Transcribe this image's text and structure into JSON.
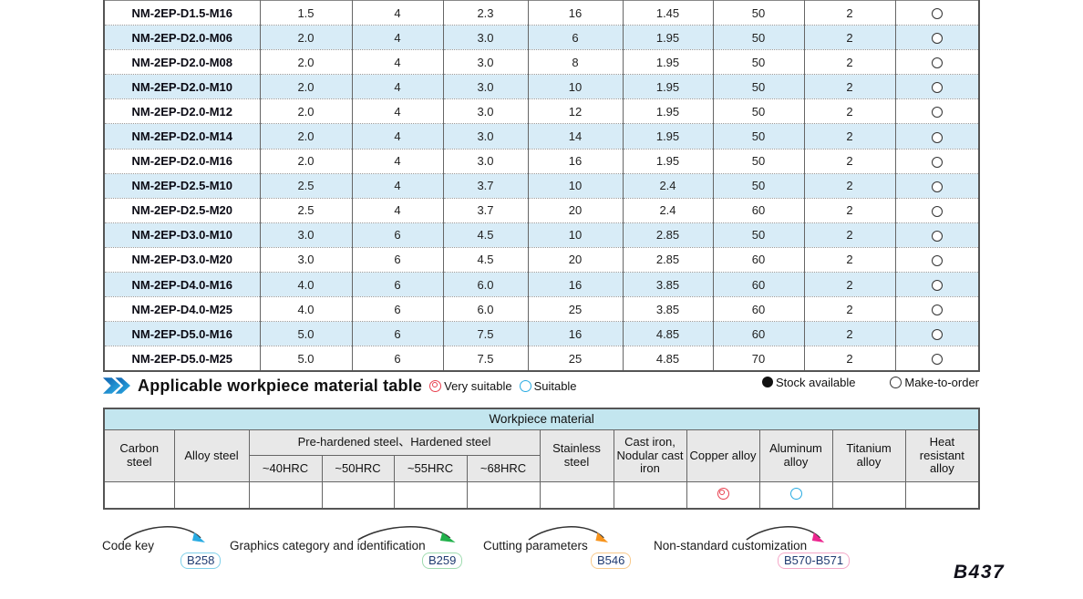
{
  "spec_table": {
    "rows": [
      {
        "model": "NM-2EP-D1.5-M16",
        "values": [
          "1.5",
          "4",
          "2.3",
          "16",
          "1.45",
          "50",
          "2"
        ],
        "stock": "make-to-order"
      },
      {
        "model": "NM-2EP-D2.0-M06",
        "values": [
          "2.0",
          "4",
          "3.0",
          "6",
          "1.95",
          "50",
          "2"
        ],
        "stock": "make-to-order"
      },
      {
        "model": "NM-2EP-D2.0-M08",
        "values": [
          "2.0",
          "4",
          "3.0",
          "8",
          "1.95",
          "50",
          "2"
        ],
        "stock": "make-to-order"
      },
      {
        "model": "NM-2EP-D2.0-M10",
        "values": [
          "2.0",
          "4",
          "3.0",
          "10",
          "1.95",
          "50",
          "2"
        ],
        "stock": "make-to-order"
      },
      {
        "model": "NM-2EP-D2.0-M12",
        "values": [
          "2.0",
          "4",
          "3.0",
          "12",
          "1.95",
          "50",
          "2"
        ],
        "stock": "make-to-order"
      },
      {
        "model": "NM-2EP-D2.0-M14",
        "values": [
          "2.0",
          "4",
          "3.0",
          "14",
          "1.95",
          "50",
          "2"
        ],
        "stock": "make-to-order"
      },
      {
        "model": "NM-2EP-D2.0-M16",
        "values": [
          "2.0",
          "4",
          "3.0",
          "16",
          "1.95",
          "50",
          "2"
        ],
        "stock": "make-to-order"
      },
      {
        "model": "NM-2EP-D2.5-M10",
        "values": [
          "2.5",
          "4",
          "3.7",
          "10",
          "2.4",
          "50",
          "2"
        ],
        "stock": "make-to-order"
      },
      {
        "model": "NM-2EP-D2.5-M20",
        "values": [
          "2.5",
          "4",
          "3.7",
          "20",
          "2.4",
          "60",
          "2"
        ],
        "stock": "make-to-order"
      },
      {
        "model": "NM-2EP-D3.0-M10",
        "values": [
          "3.0",
          "6",
          "4.5",
          "10",
          "2.85",
          "50",
          "2"
        ],
        "stock": "make-to-order"
      },
      {
        "model": "NM-2EP-D3.0-M20",
        "values": [
          "3.0",
          "6",
          "4.5",
          "20",
          "2.85",
          "60",
          "2"
        ],
        "stock": "make-to-order"
      },
      {
        "model": "NM-2EP-D4.0-M16",
        "values": [
          "4.0",
          "6",
          "6.0",
          "16",
          "3.85",
          "60",
          "2"
        ],
        "stock": "make-to-order"
      },
      {
        "model": "NM-2EP-D4.0-M25",
        "values": [
          "4.0",
          "6",
          "6.0",
          "25",
          "3.85",
          "60",
          "2"
        ],
        "stock": "make-to-order"
      },
      {
        "model": "NM-2EP-D5.0-M16",
        "values": [
          "5.0",
          "6",
          "7.5",
          "16",
          "4.85",
          "60",
          "2"
        ],
        "stock": "make-to-order"
      },
      {
        "model": "NM-2EP-D5.0-M25",
        "values": [
          "5.0",
          "6",
          "7.5",
          "25",
          "4.85",
          "70",
          "2"
        ],
        "stock": "make-to-order"
      }
    ]
  },
  "section": {
    "title": "Applicable workpiece material table",
    "legend": {
      "very_suitable": "Very suitable",
      "suitable": "Suitable"
    },
    "stock_legend": {
      "available": "Stock available",
      "make_to_order": "Make-to-order"
    }
  },
  "workpiece_table": {
    "title": "Workpiece material",
    "columns": [
      {
        "label": "Carbon steel"
      },
      {
        "label": "Alloy steel"
      },
      {
        "label": "Pre-hardened steel、Hardened steel",
        "subs": [
          "~40HRC",
          "~50HRC",
          "~55HRC",
          "~68HRC"
        ]
      },
      {
        "label": "Stainless steel"
      },
      {
        "label": "Cast iron, Nodular cast iron"
      },
      {
        "label": "Copper alloy"
      },
      {
        "label": "Aluminum alloy"
      },
      {
        "label": "Titanium alloy"
      },
      {
        "label": "Heat resistant alloy"
      }
    ],
    "row": [
      "",
      "",
      "",
      "",
      "",
      "",
      "",
      "",
      "very-suitable",
      "suitable",
      "",
      ""
    ]
  },
  "footer": {
    "links": [
      {
        "label": "Code key",
        "badge": "B258",
        "arrow_color": "#29abe2",
        "badge_border": "#7fd0ea"
      },
      {
        "label": "Graphics category and identification",
        "badge": "B259",
        "arrow_color": "#22b14c",
        "badge_border": "#9fdcb0"
      },
      {
        "label": "Cutting parameters",
        "badge": "B546",
        "arrow_color": "#f7941d",
        "badge_border": "#f8c98a"
      },
      {
        "label": "Non-standard customization",
        "badge": "B570-B571",
        "arrow_color": "#ec268f",
        "badge_border": "#f4a8c8"
      }
    ],
    "page_number": "B437"
  },
  "colors": {
    "alt_row": "#d8ecf7",
    "wp_title_bg": "#c3e6ef",
    "wp_header_bg": "#e8e8e8",
    "very_suitable": "#e8404f",
    "suitable": "#29abe2",
    "chevron_dark": "#0e5fae",
    "chevron_light": "#2fb3e8"
  }
}
